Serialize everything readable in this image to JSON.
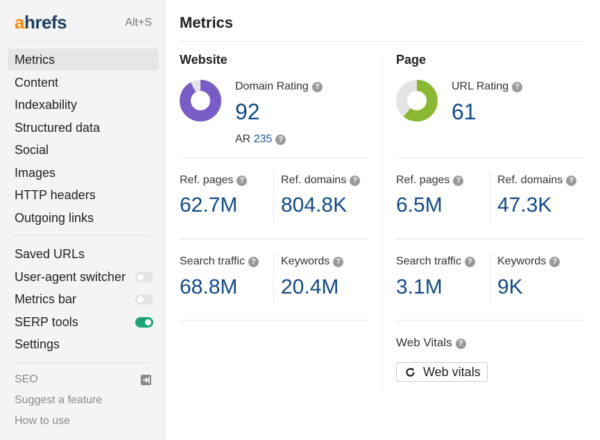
{
  "brand": {
    "logo_a": "a",
    "logo_rest": "hrefs",
    "shortcut": "Alt+S",
    "accent": "#ff8800",
    "navy": "#1f3e63"
  },
  "sidebar": {
    "items": [
      {
        "label": "Metrics",
        "active": true
      },
      {
        "label": "Content"
      },
      {
        "label": "Indexability"
      },
      {
        "label": "Structured data"
      },
      {
        "label": "Social"
      },
      {
        "label": "Images"
      },
      {
        "label": "HTTP headers"
      },
      {
        "label": "Outgoing links"
      }
    ],
    "tools": [
      {
        "label": "Saved URLs"
      },
      {
        "label": "User-agent switcher",
        "toggle": "off"
      },
      {
        "label": "Metrics bar",
        "toggle": "off"
      },
      {
        "label": "SERP tools",
        "toggle": "on"
      },
      {
        "label": "Settings"
      }
    ],
    "footer": [
      {
        "label": "SEO",
        "icon": "export-icon"
      },
      {
        "label": "Suggest a feature"
      },
      {
        "label": "How to use"
      }
    ]
  },
  "main": {
    "title": "Metrics",
    "website": {
      "heading": "Website",
      "rating_label": "Domain Rating",
      "rating_value": "92",
      "rating_fraction": 0.92,
      "donut_color": "#7a5cc8",
      "ar_label": "AR",
      "ar_value": "235",
      "ref_pages_label": "Ref. pages",
      "ref_pages_value": "62.7M",
      "ref_domains_label": "Ref. domains",
      "ref_domains_value": "804.8K",
      "search_traffic_label": "Search traffic",
      "search_traffic_value": "68.8M",
      "keywords_label": "Keywords",
      "keywords_value": "20.4M"
    },
    "page": {
      "heading": "Page",
      "rating_label": "URL Rating",
      "rating_value": "61",
      "rating_fraction": 0.61,
      "donut_color": "#8ab832",
      "ref_pages_label": "Ref. pages",
      "ref_pages_value": "6.5M",
      "ref_domains_label": "Ref. domains",
      "ref_domains_value": "47.3K",
      "search_traffic_label": "Search traffic",
      "search_traffic_value": "3.1M",
      "keywords_label": "Keywords",
      "keywords_value": "9K",
      "web_vitals_label": "Web Vitals",
      "web_vitals_button": "Web vitals"
    }
  },
  "colors": {
    "value_blue": "#114a8f",
    "toggle_on": "#1aa574"
  }
}
